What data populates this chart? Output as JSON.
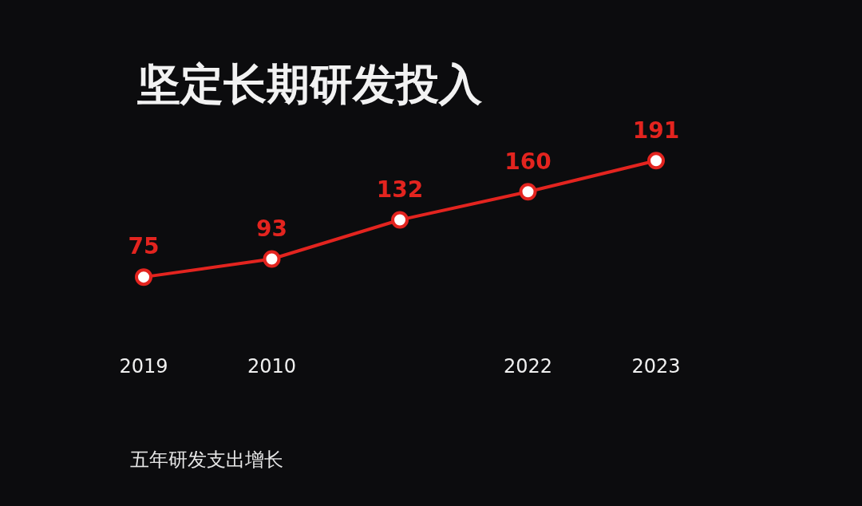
{
  "chart_data": {
    "type": "line",
    "title": "坚定长期研发投入",
    "annotations": [
      "五年研发支出增长"
    ],
    "categories": [
      "2019",
      "2010",
      null,
      "2022",
      "2023"
    ],
    "series": [
      {
        "color": "#e3241f",
        "values": [
          75,
          93,
          132,
          160,
          191
        ]
      }
    ],
    "data_labels": true,
    "marker": "circle",
    "line_style": "solid",
    "legend": false,
    "tick_labels": "x"
  }
}
